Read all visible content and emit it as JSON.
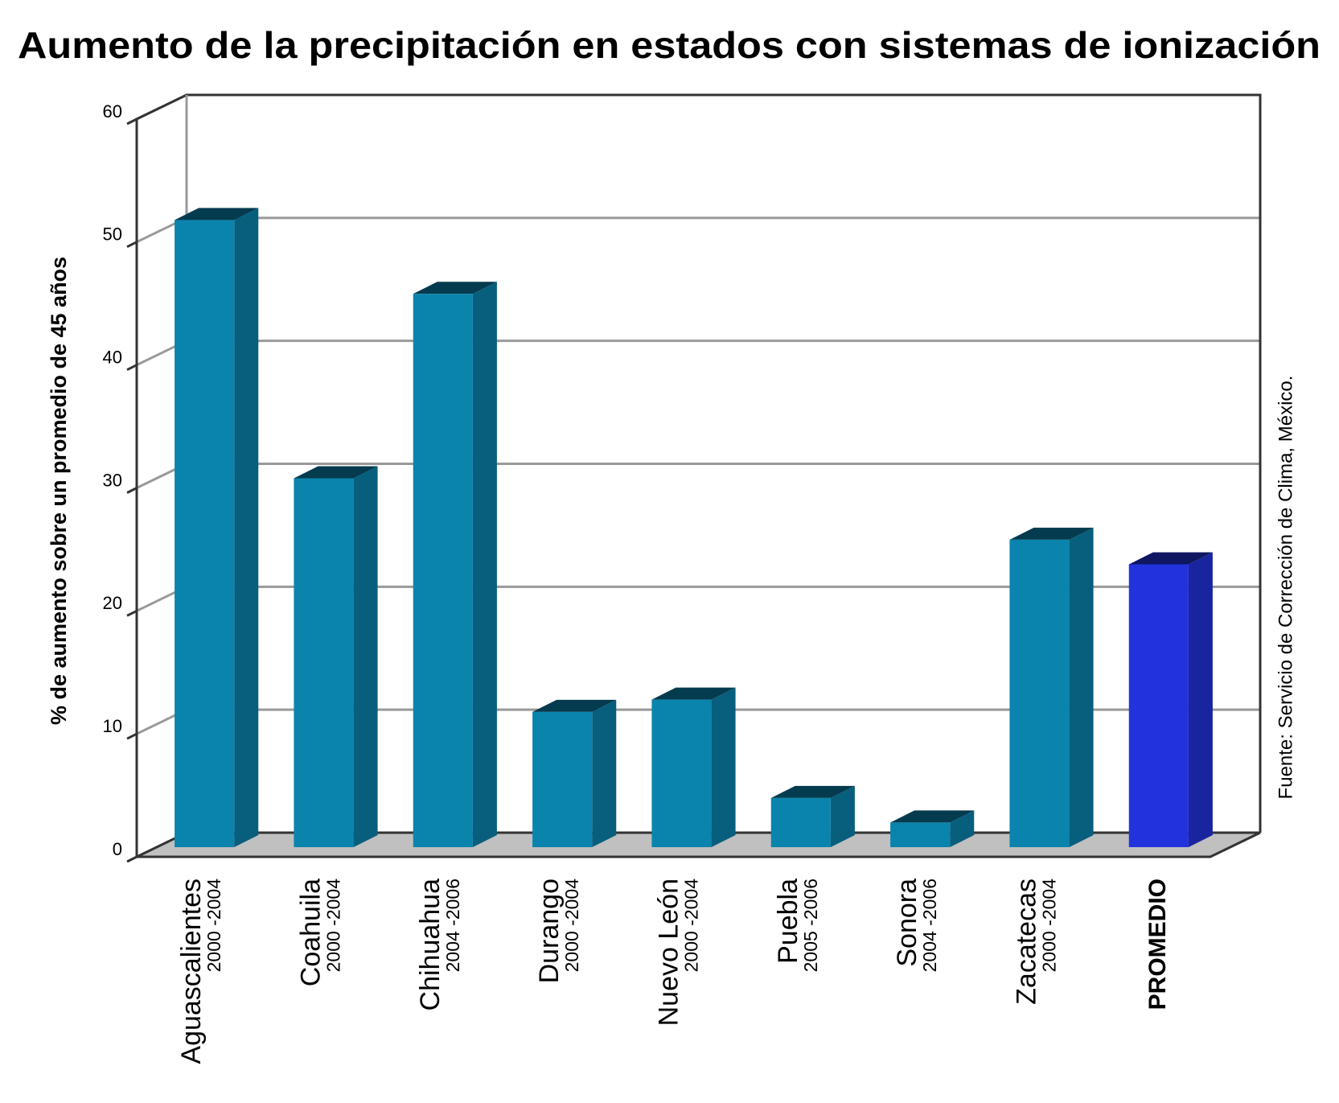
{
  "chart_data": {
    "type": "bar3d",
    "title": "Aumento de la precipitación en estados con sistemas de ionización",
    "y_label": "% de aumento sobre un promedio de 45 años",
    "source": "Fuente: Servicio de Corrección de Clima, México.",
    "categories": [
      "Aguascalientes",
      "Coahuila",
      "Chihuahua",
      "Durango",
      "Nuevo León",
      "Puebla",
      "Sonora",
      "Zacatecas",
      "PROMEDIO"
    ],
    "periods": [
      "2000 -2004",
      "2000 -2004",
      "2004 -2006",
      "2000 -2004",
      "2000 -2004",
      "2005 -2006",
      "2004 -2006",
      "2000 -2004",
      null
    ],
    "values": [
      51,
      30,
      45,
      11,
      12,
      4,
      2,
      25,
      23
    ],
    "colors": [
      "#0a84ad",
      "#0a84ad",
      "#0a84ad",
      "#0a84ad",
      "#0a84ad",
      "#0a84ad",
      "#0a84ad",
      "#0a84ad",
      "#2233dd"
    ],
    "ylim": [
      0,
      60
    ],
    "yticks": [
      0,
      10,
      20,
      30,
      40,
      50,
      60
    ],
    "grid": true
  }
}
